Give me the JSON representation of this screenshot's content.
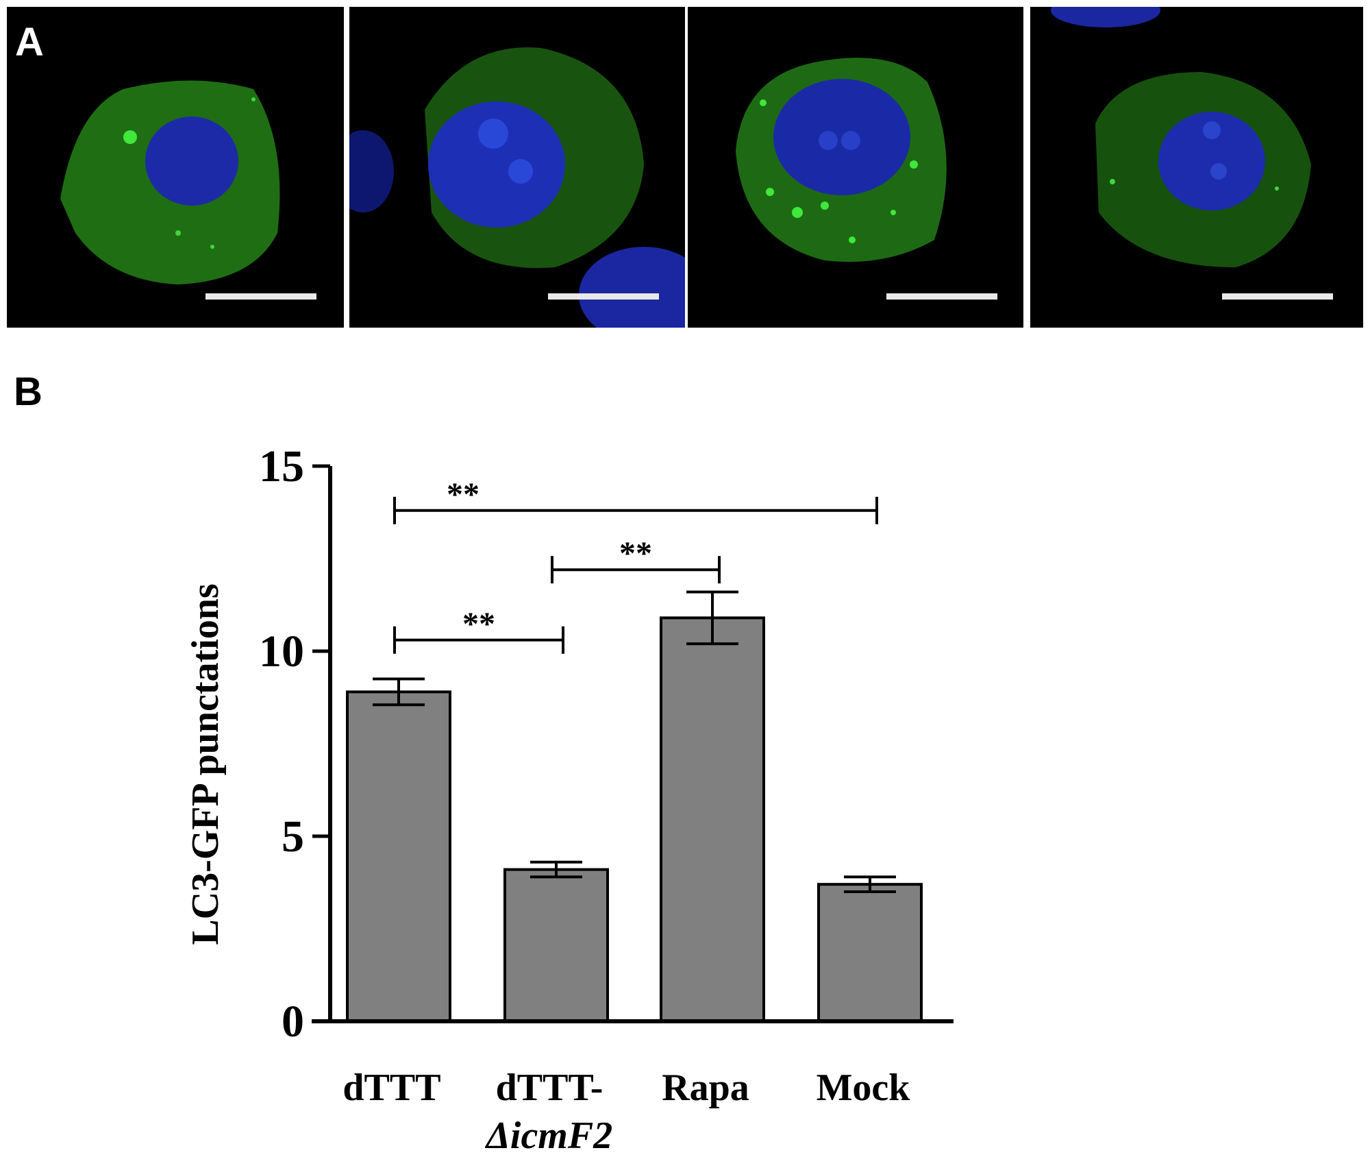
{
  "panels": {
    "a_label": "A",
    "b_label": "B"
  },
  "micrographs": [
    {
      "name": "dTTT",
      "colors": {
        "cytoplasm": "#1f6e14",
        "nucleus": "#1c2aa8"
      }
    },
    {
      "name": "dTTT-ΔicmF2",
      "colors": {
        "cytoplasm": "#18540f",
        "nucleus": "#1d2fb5"
      }
    },
    {
      "name": "Rapa",
      "colors": {
        "cytoplasm": "#1e6a14",
        "nucleus": "#1a2aa6"
      }
    },
    {
      "name": "Mock",
      "colors": {
        "cytoplasm": "#16510e",
        "nucleus": "#1c2cac"
      }
    }
  ],
  "chart_data": {
    "type": "bar",
    "title": "",
    "xlabel": "",
    "ylabel": "LC3-GFP punctations",
    "ylim": [
      0,
      15
    ],
    "yticks": [
      "0",
      "5",
      "10",
      "15"
    ],
    "categories": [
      {
        "line1": "dTTT",
        "line2": ""
      },
      {
        "line1": "dTTT-",
        "line2": "ΔicmF2"
      },
      {
        "line1": "Rapa",
        "line2": ""
      },
      {
        "line1": "Mock",
        "line2": ""
      }
    ],
    "values": [
      8.9,
      4.1,
      10.9,
      3.7
    ],
    "errors": [
      0.35,
      0.2,
      0.7,
      0.2
    ],
    "bar_color": "#808080",
    "grid": false,
    "significance": [
      {
        "from": 0,
        "to": 3,
        "label": "**",
        "y": 13.8
      },
      {
        "from": 2,
        "to": 1,
        "label": "**",
        "y": 12.2
      },
      {
        "from": 0,
        "to": 1,
        "label": "**",
        "y": 10.3
      }
    ]
  }
}
